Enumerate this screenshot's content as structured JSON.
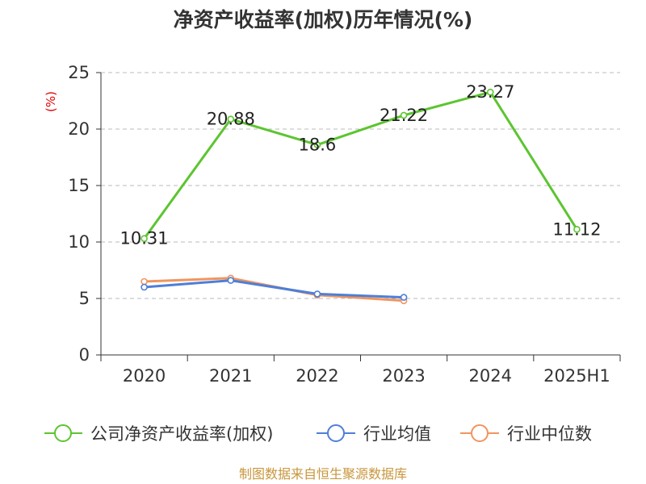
{
  "chart_data": {
    "type": "line",
    "title": "净资产收益率(加权)历年情况(%)",
    "unit_label": "(%)",
    "categories": [
      "2020",
      "2021",
      "2022",
      "2023",
      "2024",
      "2025H1"
    ],
    "ylim": [
      0,
      25
    ],
    "yticks": [
      "0",
      "5",
      "10",
      "15",
      "20",
      "25"
    ],
    "grid": true,
    "legend_position": "bottom",
    "series": [
      {
        "name": "公司净资产收益率(加权)",
        "color": "#5cc530",
        "values": [
          10.31,
          20.88,
          18.6,
          21.22,
          23.27,
          11.12
        ],
        "labels": [
          "10.31",
          "20.88",
          "18.6",
          "21.22",
          "23.27",
          "11.12"
        ]
      },
      {
        "name": "行业均值",
        "color": "#4e7fd8",
        "values": [
          6.0,
          6.6,
          5.4,
          5.1,
          null,
          null
        ]
      },
      {
        "name": "行业中位数",
        "color": "#f0955f",
        "values": [
          6.5,
          6.8,
          5.3,
          4.8,
          null,
          null
        ]
      }
    ]
  },
  "source": "制图数据来自恒生聚源数据库"
}
